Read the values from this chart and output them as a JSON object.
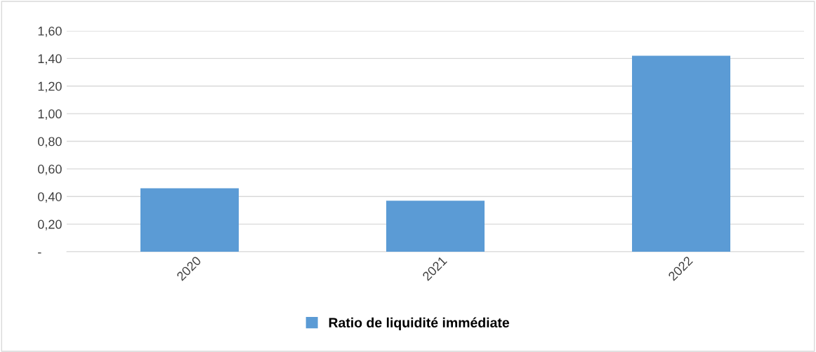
{
  "chart_data": {
    "type": "bar",
    "categories": [
      "2020",
      "2021",
      "2022"
    ],
    "series": [
      {
        "name": "Ratio de liquidité immédiate",
        "color": "#5b9bd5",
        "values": [
          0.46,
          0.37,
          1.42
        ]
      }
    ],
    "ylim": [
      0,
      1.6
    ],
    "yticks": [
      {
        "value": 0,
        "label": "-"
      },
      {
        "value": 0.2,
        "label": "0,20"
      },
      {
        "value": 0.4,
        "label": "0,40"
      },
      {
        "value": 0.6,
        "label": "0,60"
      },
      {
        "value": 0.8,
        "label": "0,80"
      },
      {
        "value": 1.0,
        "label": "1,00"
      },
      {
        "value": 1.2,
        "label": "1,20"
      },
      {
        "value": 1.4,
        "label": "1,40"
      },
      {
        "value": 1.6,
        "label": "1,60"
      }
    ],
    "grid": "y",
    "legend": "bottom"
  }
}
